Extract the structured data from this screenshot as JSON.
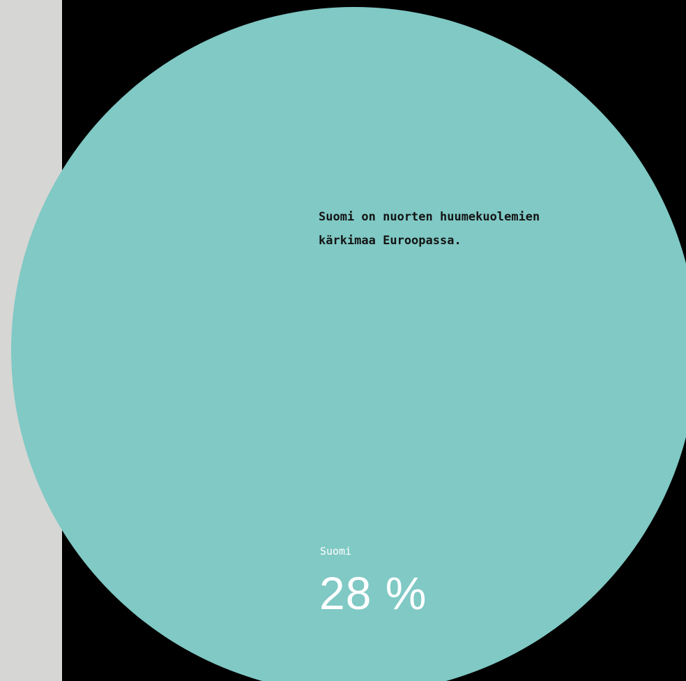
{
  "colors": {
    "background": "#000000",
    "side_strip": "#d6d6d4",
    "circle": "#80c9c5",
    "headline_text": "#141414",
    "stat_text": "#ffffff"
  },
  "headline": {
    "line1": "Suomi on nuorten huumekuolemien",
    "line2": "kärkimaa Euroopassa."
  },
  "stat": {
    "label": "Suomi",
    "value": "28 %"
  }
}
